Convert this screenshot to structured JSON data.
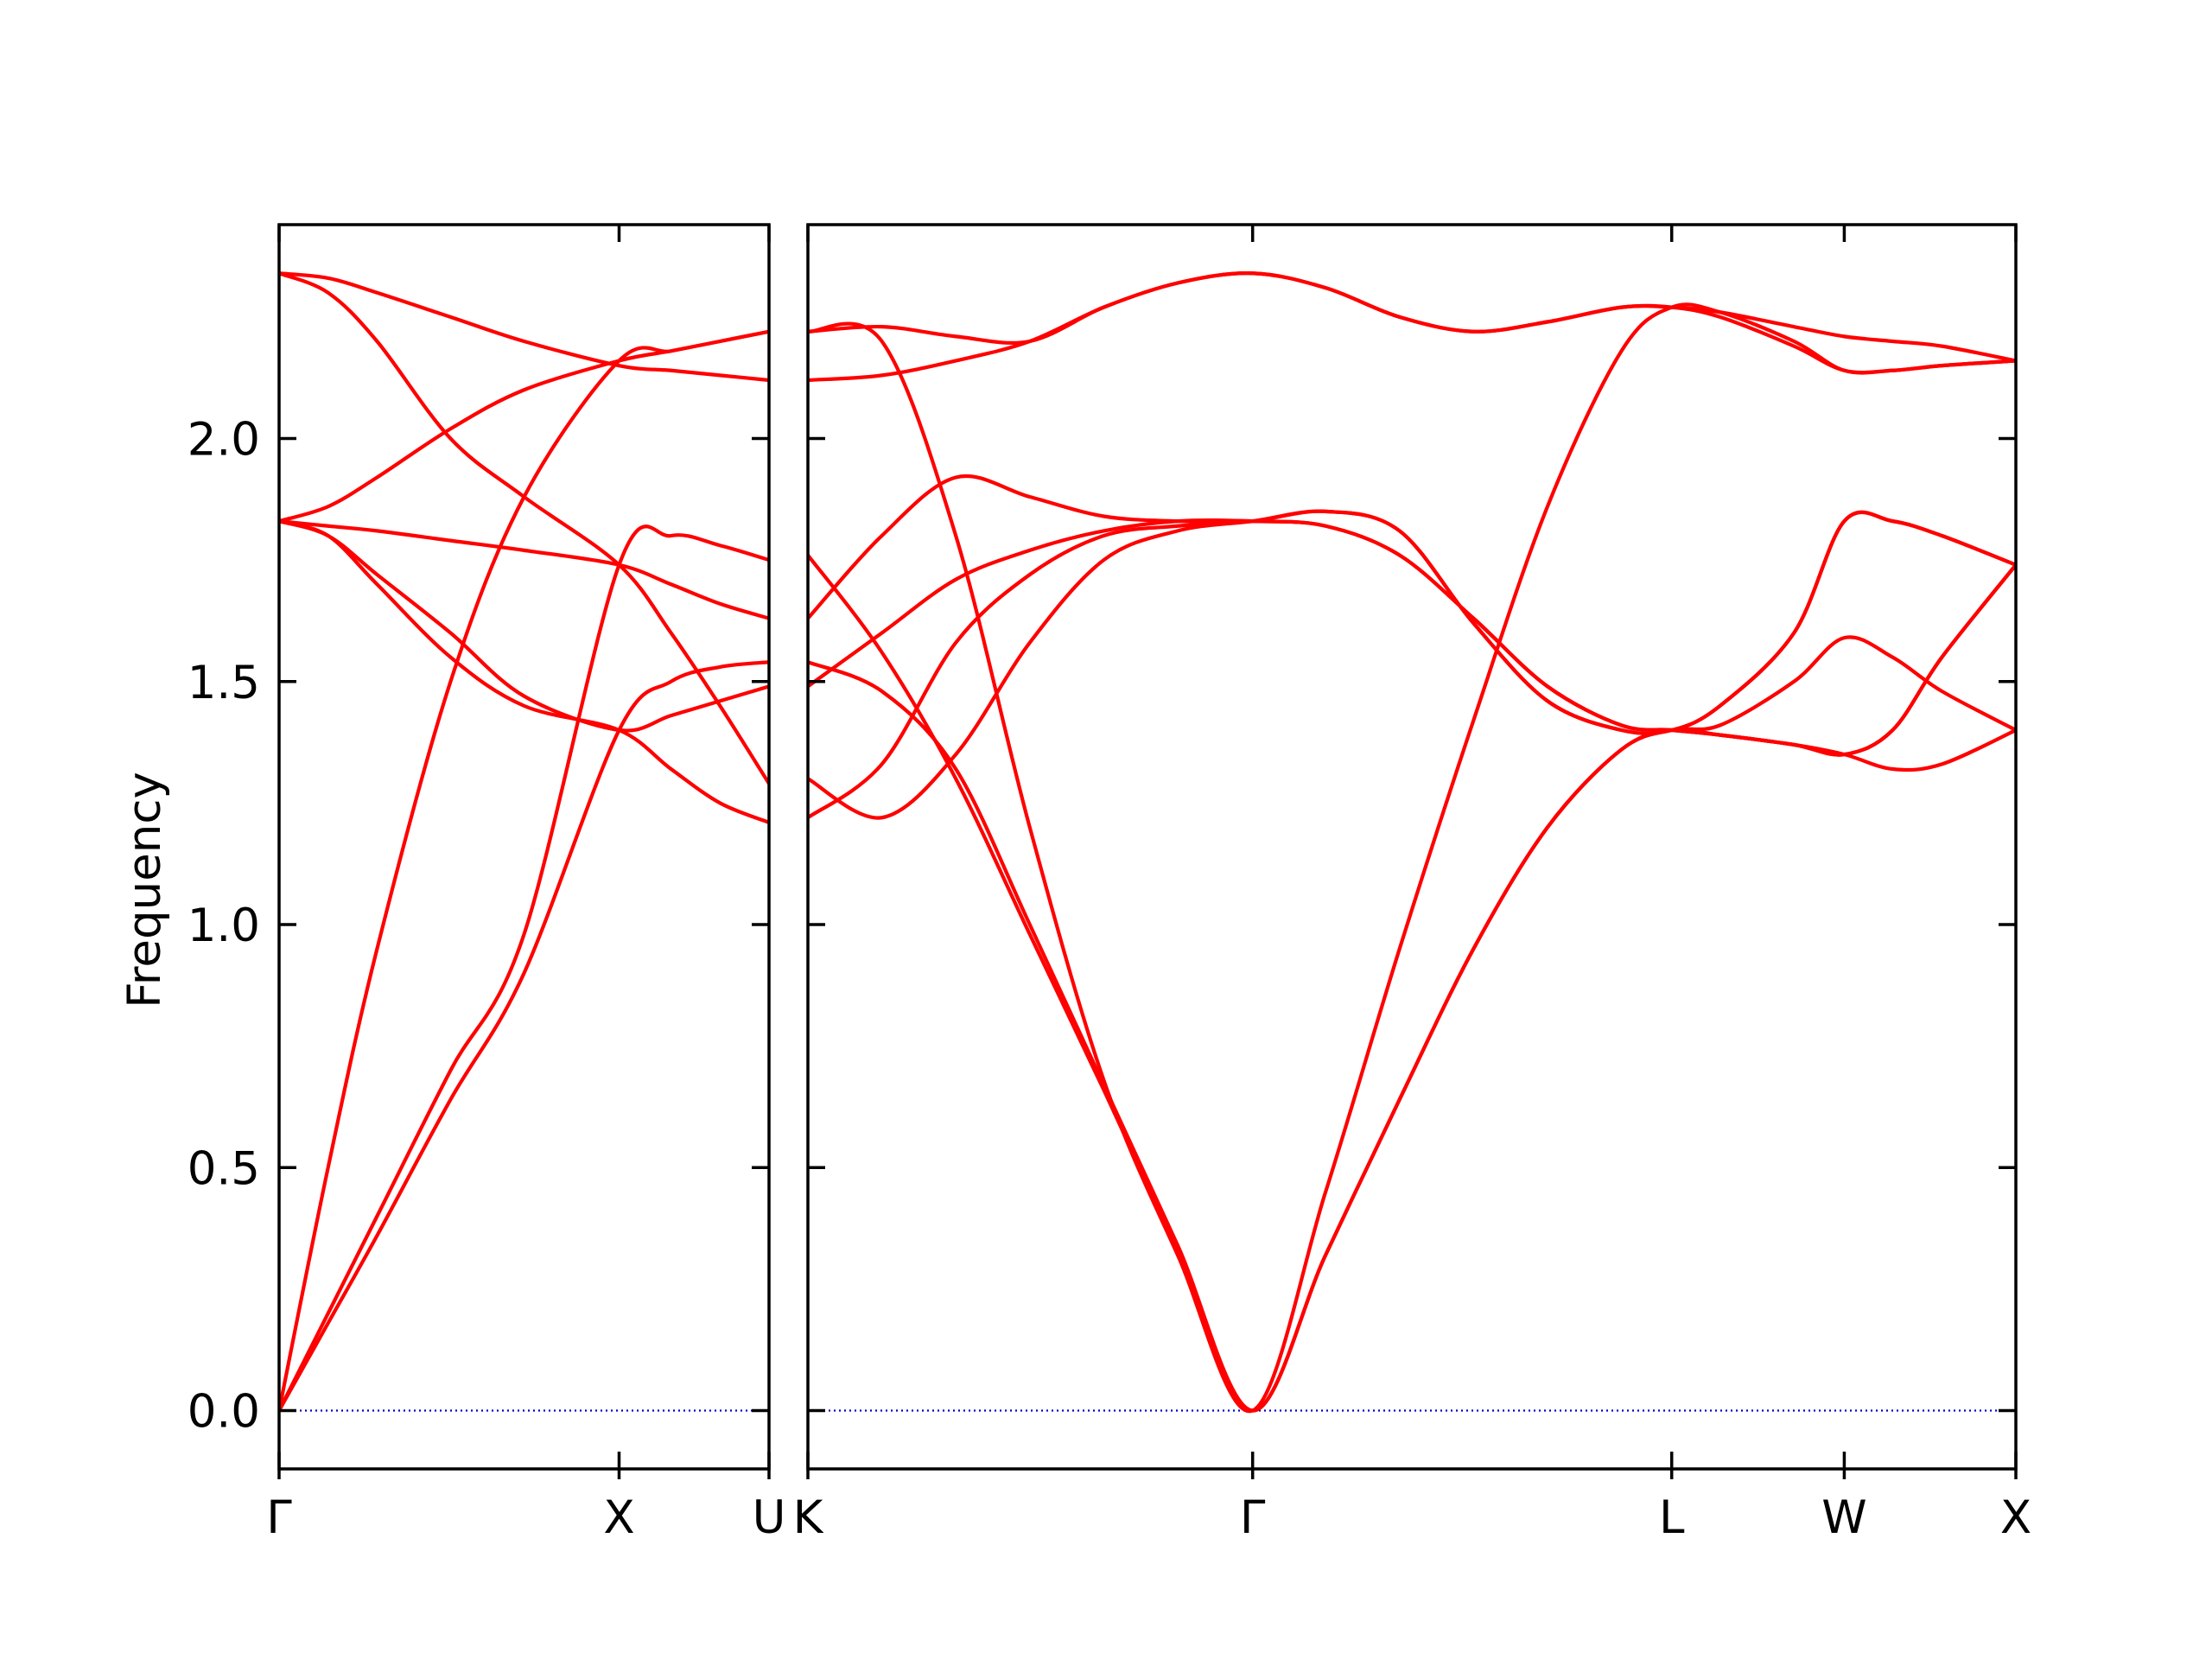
{
  "chart_data": {
    "type": "line",
    "ylabel": "Frequency",
    "ylim": [
      -0.12,
      2.44
    ],
    "yticks": [
      0.0,
      0.5,
      1.0,
      1.5,
      2.0
    ],
    "ytick_labels": [
      "0.0",
      "0.5",
      "1.0",
      "1.5",
      "2.0"
    ],
    "colors": {
      "bands": "#ff0000",
      "zero_line": "#0000cd"
    },
    "panels": [
      {
        "xlim": [
          0,
          1
        ],
        "tick_positions": [
          0,
          0.694,
          1
        ],
        "tick_labels": [
          "Γ",
          "X",
          "U"
        ],
        "x": [
          0,
          0.1,
          0.2,
          0.35,
          0.5,
          0.694,
          0.8,
          0.9,
          1.0
        ],
        "series": [
          {
            "values": [
              0.0,
              0.5,
              0.95,
              1.5,
              1.88,
              2.16,
              2.18,
              2.2,
              2.22
            ]
          },
          {
            "values": [
              0.0,
              0.2,
              0.4,
              0.7,
              0.98,
              1.74,
              1.8,
              1.78,
              1.75
            ]
          },
          {
            "values": [
              0.0,
              0.18,
              0.36,
              0.64,
              0.9,
              1.4,
              1.5,
              1.53,
              1.54
            ]
          },
          {
            "values": [
              2.34,
              2.33,
              2.3,
              2.25,
              2.2,
              2.15,
              2.14,
              2.13,
              2.12
            ]
          },
          {
            "values": [
              1.83,
              1.86,
              1.92,
              2.02,
              2.1,
              2.16,
              2.18,
              2.2,
              2.22
            ]
          },
          {
            "values": [
              2.34,
              2.3,
              2.2,
              2.0,
              1.88,
              1.74,
              1.6,
              1.45,
              1.29
            ]
          },
          {
            "values": [
              1.83,
              1.82,
              1.81,
              1.79,
              1.77,
              1.74,
              1.7,
              1.66,
              1.63
            ]
          },
          {
            "values": [
              1.83,
              1.8,
              1.7,
              1.55,
              1.45,
              1.4,
              1.32,
              1.25,
              1.21
            ]
          },
          {
            "values": [
              1.83,
              1.8,
              1.72,
              1.6,
              1.47,
              1.4,
              1.43,
              1.46,
              1.49
            ]
          }
        ]
      },
      {
        "xlim": [
          0,
          2.45
        ],
        "tick_positions": [
          0,
          0.902,
          1.752,
          2.102,
          2.45
        ],
        "tick_labels": [
          "K",
          "Γ",
          "L",
          "W",
          "X"
        ],
        "x": [
          0,
          0.15,
          0.3,
          0.45,
          0.6,
          0.75,
          0.902,
          1.05,
          1.2,
          1.35,
          1.5,
          1.65,
          1.752,
          1.85,
          2.0,
          2.102,
          2.2,
          2.3,
          2.45
        ],
        "series": [
          {
            "values": [
              2.22,
              2.23,
              2.21,
              2.2,
              2.27,
              2.32,
              2.34,
              2.31,
              2.25,
              2.22,
              2.24,
              2.27,
              2.27,
              2.26,
              2.23,
              2.21,
              2.2,
              2.19,
              2.16
            ]
          },
          {
            "values": [
              2.12,
              2.13,
              2.16,
              2.2,
              2.27,
              2.32,
              2.34,
              2.31,
              2.25,
              2.22,
              2.24,
              2.27,
              2.27,
              2.25,
              2.19,
              2.14,
              2.14,
              2.15,
              2.16
            ]
          },
          {
            "values": [
              2.22,
              2.2,
              1.8,
              1.2,
              0.68,
              0.32,
              0.0,
              0.45,
              0.95,
              1.42,
              1.86,
              2.18,
              2.27,
              2.26,
              2.2,
              2.14,
              2.14,
              2.15,
              2.16
            ]
          },
          {
            "values": [
              1.76,
              1.56,
              1.3,
              0.98,
              0.66,
              0.33,
              0.0,
              0.32,
              0.64,
              0.95,
              1.2,
              1.36,
              1.4,
              1.39,
              1.37,
              1.35,
              1.32,
              1.33,
              1.4
            ]
          },
          {
            "values": [
              1.54,
              1.48,
              1.32,
              1.0,
              0.67,
              0.34,
              0.0,
              0.32,
              0.64,
              0.95,
              1.2,
              1.36,
              1.4,
              1.41,
              1.5,
              1.59,
              1.55,
              1.48,
              1.4
            ]
          },
          {
            "values": [
              1.3,
              1.22,
              1.35,
              1.58,
              1.75,
              1.81,
              1.83,
              1.85,
              1.81,
              1.62,
              1.46,
              1.4,
              1.4,
              1.45,
              1.6,
              1.83,
              1.83,
              1.8,
              1.74
            ]
          },
          {
            "values": [
              1.63,
              1.8,
              1.92,
              1.88,
              1.84,
              1.83,
              1.83,
              1.82,
              1.76,
              1.63,
              1.49,
              1.41,
              1.4,
              1.39,
              1.37,
              1.35,
              1.4,
              1.55,
              1.74
            ]
          },
          {
            "values": [
              1.49,
              1.6,
              1.71,
              1.77,
              1.81,
              1.83,
              1.83,
              1.82,
              1.76,
              1.63,
              1.49,
              1.41,
              1.4,
              1.39,
              1.37,
              1.35,
              1.4,
              1.55,
              1.74
            ]
          },
          {
            "values": [
              1.22,
              1.33,
              1.58,
              1.72,
              1.8,
              1.82,
              1.83,
              1.85,
              1.81,
              1.62,
              1.46,
              1.4,
              1.4,
              1.45,
              1.6,
              1.83,
              1.83,
              1.8,
              1.74
            ]
          }
        ]
      }
    ]
  }
}
